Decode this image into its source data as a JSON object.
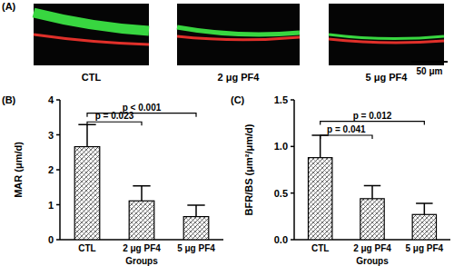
{
  "image_panel": {
    "title": "(A)",
    "captions": [
      "CTL",
      "2 μg PF4",
      "5 μg PF4"
    ],
    "scale_bar": "50 μm"
  },
  "chart_data": [
    {
      "type": "bar",
      "title": "(B)",
      "xlabel": "Groups",
      "ylabel": "MAR (μm/d)",
      "categories": [
        "CTL",
        "2 μg PF4",
        "5 μg PF4"
      ],
      "values": [
        2.66,
        1.11,
        0.66
      ],
      "errors": [
        0.63,
        0.43,
        0.33
      ],
      "color": "#555555",
      "ylim": [
        0,
        4
      ],
      "yticks": [
        0,
        1,
        2,
        3,
        4
      ],
      "grid": false,
      "annotations": [
        {
          "text": "p = 0.023",
          "from": 0,
          "to": 1,
          "y": 3.37
        },
        {
          "text": "p < 0.001",
          "from": 0,
          "to": 2,
          "y": 3.62
        }
      ]
    },
    {
      "type": "bar",
      "title": "(C)",
      "xlabel": "Groups",
      "ylabel": "BFR/BS (μm²/μm/d)",
      "categories": [
        "CTL",
        "2 μg PF4",
        "5 μg PF4"
      ],
      "values": [
        0.88,
        0.44,
        0.27
      ],
      "errors": [
        0.24,
        0.14,
        0.12
      ],
      "color": "#555555",
      "ylim": [
        0,
        1.5
      ],
      "yticks": [
        {
          "value": 0,
          "label": "0.0"
        },
        {
          "value": 0.5,
          "label": "0.5"
        },
        {
          "value": 1,
          "label": "1.0"
        },
        {
          "value": 1.5,
          "label": "1.5"
        }
      ],
      "grid": false,
      "annotations": [
        {
          "text": "p = 0.041",
          "from": 0,
          "to": 1,
          "y": 1.12
        },
        {
          "text": "p = 0.012",
          "from": 0,
          "to": 2,
          "y": 1.27
        }
      ]
    }
  ]
}
